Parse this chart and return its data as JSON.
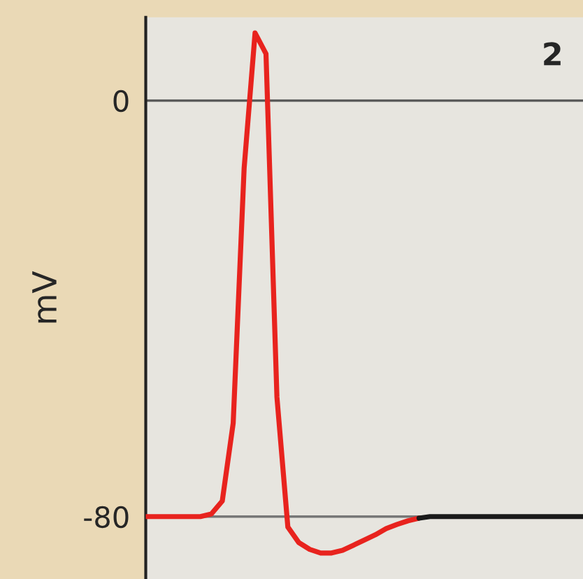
{
  "chart_data": {
    "type": "line",
    "ylabel": "mV",
    "annotations": [
      "2"
    ],
    "ylim": [
      -92,
      16
    ],
    "yticks": [
      -80,
      0
    ],
    "tick_labels": "y",
    "legend": false,
    "marker": "none",
    "line_style": "solid",
    "categories": [
      null,
      null,
      null,
      null,
      null,
      null,
      null,
      null,
      null,
      null,
      null,
      null,
      null,
      null,
      null,
      null,
      null,
      null,
      null,
      null,
      null,
      null,
      null,
      null,
      null,
      null,
      null,
      null,
      null,
      null,
      null,
      null,
      null,
      null,
      null,
      null,
      null,
      null,
      null,
      null,
      null
    ],
    "series": [
      {
        "color": "#e8231e",
        "values": [
          -80,
          -80,
          -80,
          -80,
          -80,
          -80,
          -79.5,
          -77,
          -62,
          -13,
          13,
          9,
          -57,
          -82,
          -85,
          -86.3,
          -87,
          -87,
          -86.5,
          -85.5,
          -84.5,
          -83.5,
          -82.3,
          -81.5,
          -80.8,
          -80.3,
          null,
          null,
          null,
          null,
          null,
          null,
          null,
          null,
          null,
          null,
          null,
          null,
          null,
          null,
          null
        ]
      },
      {
        "color": "#1a1a1a",
        "values": [
          null,
          null,
          null,
          null,
          null,
          null,
          null,
          null,
          null,
          null,
          null,
          null,
          null,
          null,
          null,
          null,
          null,
          null,
          null,
          null,
          null,
          null,
          null,
          null,
          null,
          -80.3,
          -80,
          -80,
          -80,
          -80,
          -80,
          -80,
          -80,
          -80,
          -80,
          -80,
          -80,
          -80,
          -80,
          -80,
          -80
        ]
      }
    ],
    "ref_lines": [
      {
        "axis": "y",
        "value": 0,
        "color": "#555555"
      },
      {
        "axis": "y",
        "value": -80,
        "color": "#777777"
      }
    ]
  }
}
